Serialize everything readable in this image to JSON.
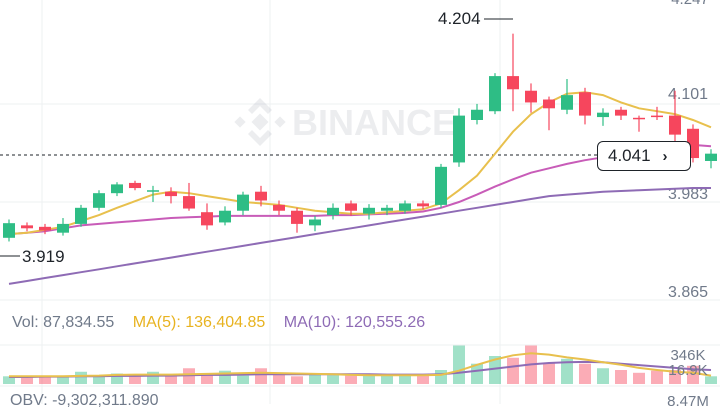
{
  "colors": {
    "up": "#2ebd85",
    "down": "#f6465d",
    "ma5": "#e8c04d",
    "ma10": "#c85cb8",
    "ma30": "#8e6bb5",
    "axis_text": "#707a8a",
    "grid": "#eef0f2"
  },
  "watermark": "BINANCE",
  "price_axis": {
    "top_cut": "4.247",
    "tick_4101": "4.101",
    "tick_3983": "3.983",
    "tick_3865": "3.865"
  },
  "annotations": {
    "high": "4.204",
    "low": "3.919"
  },
  "current_price": {
    "value": "4.041",
    "chevron": "›"
  },
  "volume_panel": {
    "vol_label": "Vol: 87,834.55",
    "ma5_label": "MA(5): 136,404.85",
    "ma10_label": "MA(10): 120,555.26",
    "axis_top": "346K",
    "axis_mid": "16.9K",
    "axis_bottom": "8.47M"
  },
  "obv_label": "OBV: -9,302,311.890",
  "chart_data": {
    "type": "candlestick",
    "ylim": [
      3.84,
      4.25
    ],
    "candles": [
      {
        "o": 3.925,
        "c": 3.945,
        "h": 3.95,
        "l": 3.92
      },
      {
        "o": 3.942,
        "c": 3.938,
        "h": 3.946,
        "l": 3.934
      },
      {
        "o": 3.94,
        "c": 3.935,
        "h": 3.944,
        "l": 3.93
      },
      {
        "o": 3.932,
        "c": 3.944,
        "h": 3.952,
        "l": 3.928
      },
      {
        "o": 3.944,
        "c": 3.966,
        "h": 3.97,
        "l": 3.94
      },
      {
        "o": 3.966,
        "c": 3.986,
        "h": 3.99,
        "l": 3.962
      },
      {
        "o": 3.986,
        "c": 3.998,
        "h": 4.001,
        "l": 3.982
      },
      {
        "o": 4.0,
        "c": 3.993,
        "h": 4.003,
        "l": 3.99
      },
      {
        "o": 3.988,
        "c": 3.99,
        "h": 3.996,
        "l": 3.974
      },
      {
        "o": 3.988,
        "c": 3.982,
        "h": 3.994,
        "l": 3.972
      },
      {
        "o": 3.982,
        "c": 3.965,
        "h": 4.0,
        "l": 3.962
      },
      {
        "o": 3.96,
        "c": 3.942,
        "h": 3.972,
        "l": 3.936
      },
      {
        "o": 3.946,
        "c": 3.962,
        "h": 3.968,
        "l": 3.942
      },
      {
        "o": 3.962,
        "c": 3.984,
        "h": 3.988,
        "l": 3.956
      },
      {
        "o": 3.988,
        "c": 3.976,
        "h": 3.996,
        "l": 3.968
      },
      {
        "o": 3.97,
        "c": 3.962,
        "h": 3.976,
        "l": 3.956
      },
      {
        "o": 3.962,
        "c": 3.944,
        "h": 3.966,
        "l": 3.932
      },
      {
        "o": 3.942,
        "c": 3.95,
        "h": 3.955,
        "l": 3.934
      },
      {
        "o": 3.956,
        "c": 3.966,
        "h": 3.972,
        "l": 3.95
      },
      {
        "o": 3.972,
        "c": 3.962,
        "h": 3.976,
        "l": 3.955
      },
      {
        "o": 3.958,
        "c": 3.966,
        "h": 3.971,
        "l": 3.95
      },
      {
        "o": 3.962,
        "c": 3.966,
        "h": 3.97,
        "l": 3.956
      },
      {
        "o": 3.962,
        "c": 3.972,
        "h": 3.976,
        "l": 3.958
      },
      {
        "o": 3.972,
        "c": 3.968,
        "h": 3.976,
        "l": 3.964
      },
      {
        "o": 3.97,
        "c": 4.022,
        "h": 4.026,
        "l": 3.966
      },
      {
        "o": 4.028,
        "c": 4.092,
        "h": 4.102,
        "l": 4.022
      },
      {
        "o": 4.086,
        "c": 4.1,
        "h": 4.108,
        "l": 4.08
      },
      {
        "o": 4.098,
        "c": 4.146,
        "h": 4.15,
        "l": 4.094
      },
      {
        "o": 4.146,
        "c": 4.128,
        "h": 4.204,
        "l": 4.098
      },
      {
        "o": 4.126,
        "c": 4.11,
        "h": 4.136,
        "l": 4.096
      },
      {
        "o": 4.114,
        "c": 4.102,
        "h": 4.118,
        "l": 4.072
      },
      {
        "o": 4.1,
        "c": 4.12,
        "h": 4.142,
        "l": 4.094
      },
      {
        "o": 4.124,
        "c": 4.092,
        "h": 4.13,
        "l": 4.08
      },
      {
        "o": 4.09,
        "c": 4.096,
        "h": 4.102,
        "l": 4.078
      },
      {
        "o": 4.1,
        "c": 4.092,
        "h": 4.104,
        "l": 4.086
      },
      {
        "o": 4.089,
        "c": 4.088,
        "h": 4.092,
        "l": 4.07
      },
      {
        "o": 4.092,
        "c": 4.09,
        "h": 4.104,
        "l": 4.086
      },
      {
        "o": 4.092,
        "c": 4.066,
        "h": 4.126,
        "l": 4.05
      },
      {
        "o": 4.074,
        "c": 4.034,
        "h": 4.08,
        "l": 4.028
      },
      {
        "o": 4.03,
        "c": 4.04,
        "h": 4.046,
        "l": 4.02
      }
    ],
    "ma_fast": [
      3.93,
      3.932,
      3.936,
      3.94,
      3.948,
      3.956,
      3.966,
      3.975,
      3.984,
      3.988,
      3.986,
      3.982,
      3.978,
      3.974,
      3.972,
      3.97,
      3.966,
      3.962,
      3.96,
      3.958,
      3.958,
      3.96,
      3.962,
      3.964,
      3.972,
      3.99,
      4.01,
      4.04,
      4.07,
      4.094,
      4.11,
      4.122,
      4.124,
      4.12,
      4.11,
      4.102,
      4.098,
      4.094,
      4.086,
      4.076
    ],
    "ma_mid": [
      3.93,
      3.932,
      3.934,
      3.938,
      3.942,
      3.944,
      3.946,
      3.948,
      3.95,
      3.952,
      3.953,
      3.954,
      3.955,
      3.955,
      3.955,
      3.955,
      3.955,
      3.955,
      3.956,
      3.956,
      3.957,
      3.958,
      3.959,
      3.961,
      3.966,
      3.974,
      3.984,
      3.995,
      4.005,
      4.014,
      4.02,
      4.026,
      4.031,
      4.035,
      4.039,
      4.043,
      4.047,
      4.05,
      4.052,
      4.05
    ],
    "ma_slow": [
      3.862,
      3.866,
      3.87,
      3.874,
      3.878,
      3.882,
      3.886,
      3.89,
      3.894,
      3.898,
      3.902,
      3.906,
      3.91,
      3.914,
      3.918,
      3.922,
      3.926,
      3.93,
      3.934,
      3.938,
      3.942,
      3.946,
      3.95,
      3.954,
      3.958,
      3.962,
      3.966,
      3.97,
      3.974,
      3.978,
      3.982,
      3.984,
      3.986,
      3.988,
      3.989,
      3.99,
      3.991,
      3.992,
      3.993,
      3.993
    ],
    "volume": {
      "ylim": [
        0,
        1.0
      ],
      "bars": [
        0.22,
        0.2,
        0.2,
        0.22,
        0.35,
        0.25,
        0.3,
        0.22,
        0.35,
        0.26,
        0.45,
        0.3,
        0.38,
        0.24,
        0.45,
        0.28,
        0.22,
        0.3,
        0.25,
        0.24,
        0.28,
        0.26,
        0.25,
        0.26,
        0.4,
        1.1,
        0.58,
        0.8,
        0.75,
        1.1,
        0.6,
        0.72,
        0.58,
        0.45,
        0.4,
        0.32,
        0.38,
        0.4,
        0.52,
        0.22
      ],
      "up": [
        true,
        false,
        false,
        true,
        true,
        true,
        true,
        false,
        true,
        false,
        false,
        false,
        true,
        true,
        false,
        false,
        false,
        true,
        true,
        false,
        true,
        true,
        true,
        false,
        true,
        true,
        true,
        true,
        false,
        false,
        false,
        true,
        false,
        true,
        false,
        false,
        false,
        false,
        false,
        true
      ],
      "ma_fast": [
        0.22,
        0.22,
        0.22,
        0.22,
        0.23,
        0.24,
        0.26,
        0.27,
        0.27,
        0.27,
        0.28,
        0.29,
        0.3,
        0.31,
        0.32,
        0.31,
        0.3,
        0.29,
        0.28,
        0.26,
        0.25,
        0.25,
        0.25,
        0.25,
        0.26,
        0.38,
        0.55,
        0.7,
        0.82,
        0.88,
        0.84,
        0.76,
        0.7,
        0.62,
        0.55,
        0.46,
        0.4,
        0.35,
        0.32,
        0.24
      ],
      "ma_slow": [
        0.2,
        0.2,
        0.21,
        0.21,
        0.22,
        0.22,
        0.23,
        0.23,
        0.24,
        0.24,
        0.25,
        0.26,
        0.26,
        0.27,
        0.28,
        0.28,
        0.28,
        0.28,
        0.28,
        0.28,
        0.28,
        0.27,
        0.27,
        0.27,
        0.28,
        0.32,
        0.38,
        0.44,
        0.5,
        0.56,
        0.6,
        0.62,
        0.63,
        0.62,
        0.58,
        0.54,
        0.5,
        0.46,
        0.42,
        0.4
      ]
    }
  }
}
